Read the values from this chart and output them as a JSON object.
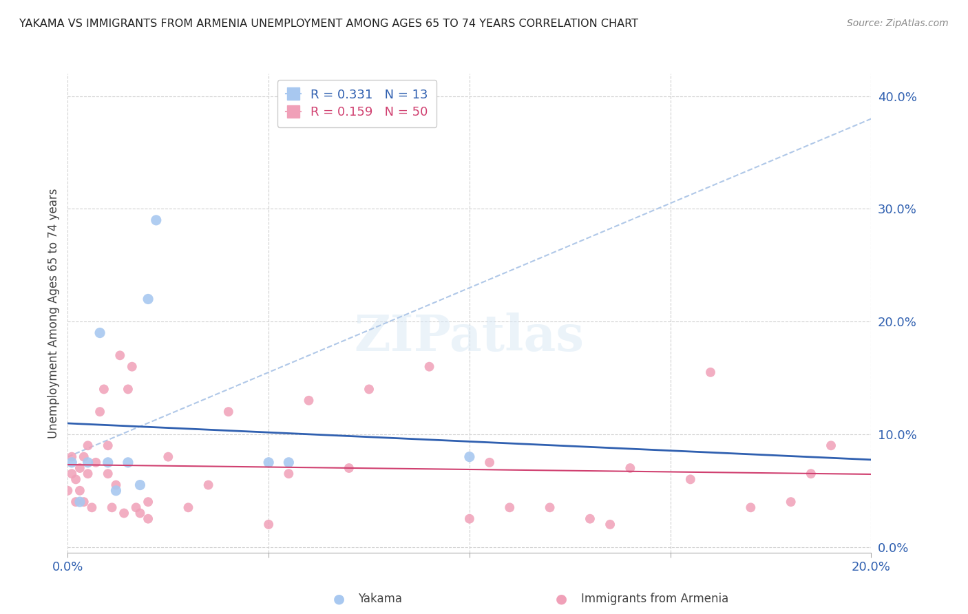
{
  "title": "YAKAMA VS IMMIGRANTS FROM ARMENIA UNEMPLOYMENT AMONG AGES 65 TO 74 YEARS CORRELATION CHART",
  "source": "Source: ZipAtlas.com",
  "ylabel": "Unemployment Among Ages 65 to 74 years",
  "xlim": [
    0.0,
    0.2
  ],
  "ylim": [
    -0.005,
    0.42
  ],
  "yticks": [
    0.0,
    0.1,
    0.2,
    0.3,
    0.4
  ],
  "xticks": [
    0.0,
    0.05,
    0.1,
    0.15,
    0.2
  ],
  "background_color": "#ffffff",
  "grid_color": "#d0d0d0",
  "yakama_color": "#a8c8f0",
  "armenia_color": "#f0a0b8",
  "yakama_line_color": "#3060b0",
  "armenia_line_color": "#d04070",
  "dashed_line_color": "#b0c8e8",
  "legend_label_yakama": "Yakama",
  "legend_label_armenia": "Immigrants from Armenia",
  "yakama_x": [
    0.001,
    0.003,
    0.005,
    0.008,
    0.01,
    0.012,
    0.015,
    0.018,
    0.02,
    0.022,
    0.05,
    0.055,
    0.1
  ],
  "yakama_y": [
    0.075,
    0.04,
    0.075,
    0.19,
    0.075,
    0.05,
    0.075,
    0.055,
    0.22,
    0.29,
    0.075,
    0.075,
    0.08
  ],
  "armenia_x": [
    0.0,
    0.001,
    0.001,
    0.002,
    0.002,
    0.003,
    0.003,
    0.004,
    0.004,
    0.005,
    0.005,
    0.006,
    0.007,
    0.008,
    0.009,
    0.01,
    0.01,
    0.011,
    0.012,
    0.013,
    0.014,
    0.015,
    0.016,
    0.017,
    0.018,
    0.02,
    0.02,
    0.025,
    0.03,
    0.035,
    0.04,
    0.05,
    0.055,
    0.06,
    0.07,
    0.075,
    0.09,
    0.1,
    0.105,
    0.11,
    0.12,
    0.13,
    0.135,
    0.14,
    0.155,
    0.16,
    0.17,
    0.18,
    0.185,
    0.19
  ],
  "armenia_y": [
    0.05,
    0.065,
    0.08,
    0.04,
    0.06,
    0.05,
    0.07,
    0.04,
    0.08,
    0.065,
    0.09,
    0.035,
    0.075,
    0.12,
    0.14,
    0.065,
    0.09,
    0.035,
    0.055,
    0.17,
    0.03,
    0.14,
    0.16,
    0.035,
    0.03,
    0.025,
    0.04,
    0.08,
    0.035,
    0.055,
    0.12,
    0.02,
    0.065,
    0.13,
    0.07,
    0.14,
    0.16,
    0.025,
    0.075,
    0.035,
    0.035,
    0.025,
    0.02,
    0.07,
    0.06,
    0.155,
    0.035,
    0.04,
    0.065,
    0.09
  ]
}
